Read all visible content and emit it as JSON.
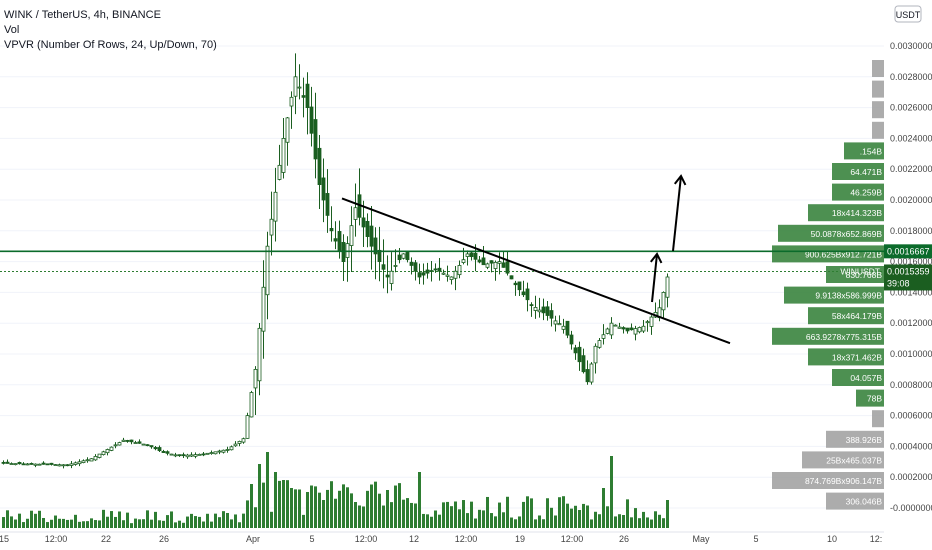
{
  "legend": {
    "title": "WINK / TetherUS, 4h, BINANCE",
    "vol": "Vol",
    "vpvr": "VPVR (Number Of Rows, 24, Up/Down, 70)"
  },
  "currency_button": "USDT",
  "colors": {
    "up": "#26a69a",
    "candle": "#1b5e20",
    "volume": "#2e7d32",
    "vpvr_up": "#b7c9bb",
    "vpvr_down": "#c4c4c4",
    "accent": "#0b6b2b",
    "line": "#000000"
  },
  "chart_data": {
    "type": "candlestick",
    "symbol": "WINK / TetherUS",
    "interval": "4h",
    "exchange": "BINANCE",
    "y_axis": {
      "min": -0.0,
      "max": 0.003,
      "ticks": [
        "0.0030000",
        "0.0028000",
        "0.0026000",
        "0.0024000",
        "0.0022000",
        "0.0020000",
        "0.0018000",
        "0.0016000",
        "0.0014000",
        "0.0012000",
        "0.0010000",
        "0.0008000",
        "0.0006000",
        "0.0004000",
        "0.0002000",
        "-0.0000000"
      ]
    },
    "x_axis": {
      "labels": [
        "15",
        "12:00",
        "22",
        "26",
        "Apr",
        "5",
        "12:00",
        "12",
        "12:00",
        "19",
        "12:00",
        "26",
        "May",
        "5",
        "10",
        "12:"
      ]
    },
    "last_price": {
      "label": "WINUSDT",
      "value": "0.0015359",
      "countdown": "39:08"
    },
    "horizontal_level": {
      "value": "0.0016667"
    },
    "price_path": [
      [
        0,
        0.00029
      ],
      [
        16,
        0.00028
      ],
      [
        22,
        0.00032
      ],
      [
        30,
        0.00044
      ],
      [
        36,
        0.00041
      ],
      [
        40,
        0.00036
      ],
      [
        44,
        0.00034
      ],
      [
        50,
        0.00035
      ],
      [
        56,
        0.00038
      ],
      [
        60,
        0.00045
      ],
      [
        63,
        0.0009
      ],
      [
        66,
        0.0017
      ],
      [
        70,
        0.0024
      ],
      [
        73,
        0.0028
      ],
      [
        76,
        0.0026
      ],
      [
        79,
        0.0021
      ],
      [
        82,
        0.0018
      ],
      [
        85,
        0.0016
      ],
      [
        88,
        0.00195
      ],
      [
        92,
        0.0017
      ],
      [
        96,
        0.0015
      ],
      [
        100,
        0.00165
      ],
      [
        104,
        0.0015
      ],
      [
        108,
        0.00155
      ],
      [
        112,
        0.0015
      ],
      [
        116,
        0.00165
      ],
      [
        120,
        0.00158
      ],
      [
        124,
        0.0016
      ],
      [
        128,
        0.00145
      ],
      [
        132,
        0.00132
      ],
      [
        136,
        0.00125
      ],
      [
        140,
        0.00118
      ],
      [
        144,
        0.00095
      ],
      [
        146,
        0.00082
      ],
      [
        148,
        0.00105
      ],
      [
        152,
        0.0012
      ],
      [
        156,
        0.00115
      ],
      [
        160,
        0.00118
      ],
      [
        164,
        0.0013
      ],
      [
        166,
        0.0015
      ]
    ],
    "volume_spikes": [
      [
        62,
        0.55
      ],
      [
        64,
        0.8
      ],
      [
        66,
        0.95
      ],
      [
        68,
        0.7
      ],
      [
        70,
        0.6
      ],
      [
        72,
        0.5
      ],
      [
        76,
        0.45
      ],
      [
        80,
        0.35
      ],
      [
        104,
        0.7
      ],
      [
        150,
        0.5
      ],
      [
        152,
        0.9
      ],
      [
        166,
        0.35
      ]
    ],
    "vpvr_rows": [
      {
        "price": 0.00295,
        "label": ""
      },
      {
        "price": 0.00282,
        "label": ""
      },
      {
        "price": 0.00258,
        "label": ""
      },
      {
        "price": 0.0024,
        "label": ""
      },
      {
        "price": 0.0022,
        "label": ".154B"
      },
      {
        "price": 0.00203,
        "label": "64.471B"
      },
      {
        "price": 0.00187,
        "label": "46.259B"
      },
      {
        "price": 0.0017,
        "label": "18x414.323B"
      },
      {
        "price": 0.00154,
        "label": "50.0878x652.869B"
      },
      {
        "price": 0.00138,
        "label": "900.625Bx912.721B"
      },
      {
        "price": 0.00122,
        "label": "830.768B"
      },
      {
        "price": 0.00106,
        "label": "9.9138x586.999B"
      },
      {
        "price": 0.0009,
        "label": "58x464.179B"
      },
      {
        "price": 0.00074,
        "label": "663.9278x775.315B"
      },
      {
        "price": 0.00058,
        "label": "18x371.462B"
      },
      {
        "price": 0.00042,
        "label": "04.057B"
      },
      {
        "price": 0.00026,
        "label": "78B"
      },
      {
        "price": 0.0001,
        "label": ""
      },
      {
        "price": -6e-05,
        "label": "388.926B"
      },
      {
        "price": -0.00022,
        "label": "25Bx465.037B"
      },
      {
        "price": -0.00038,
        "label": "874.769Bx906.147B"
      },
      {
        "price": -0.00054,
        "label": "306.046B"
      }
    ]
  }
}
